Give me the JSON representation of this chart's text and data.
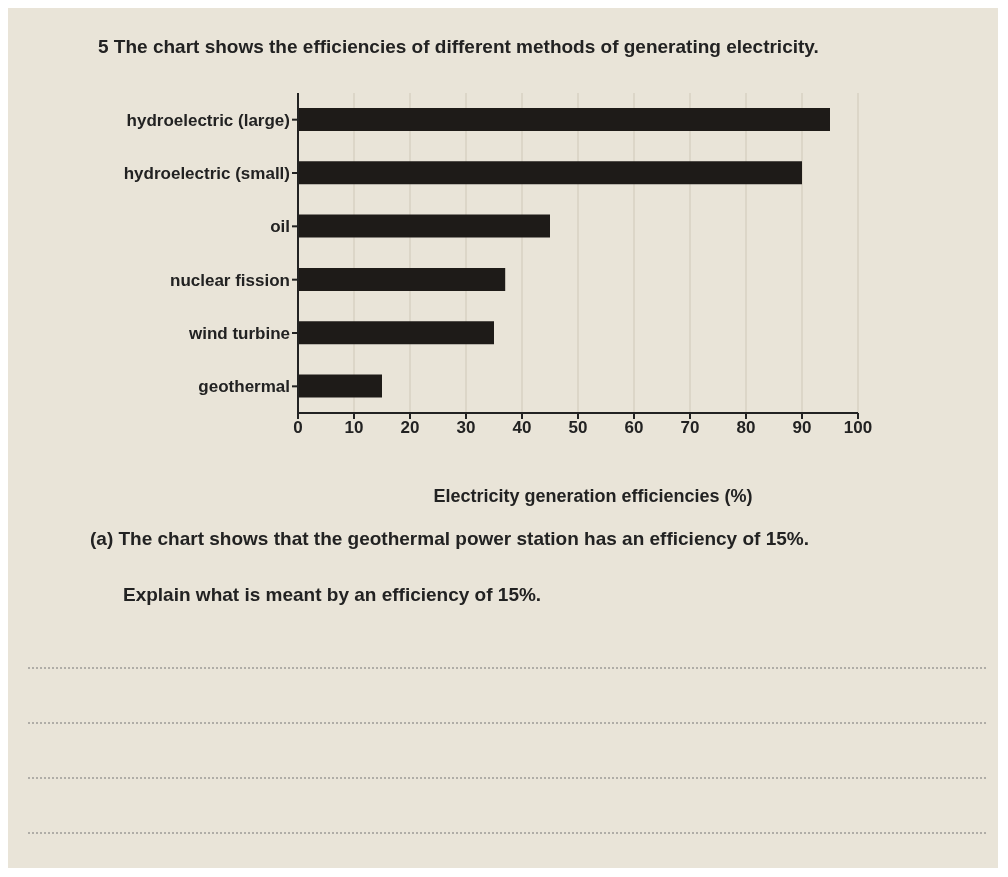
{
  "chart_data": {
    "type": "bar",
    "orientation": "horizontal",
    "title": "5  The chart shows the efficiencies of different methods of generating electricity.",
    "categories": [
      "hydroelectric (large)",
      "hydroelectric (small)",
      "oil",
      "nuclear fission",
      "wind turbine",
      "geothermal"
    ],
    "values": [
      95,
      90,
      45,
      37,
      35,
      15
    ],
    "color": "#1e1b18",
    "xlim": [
      0,
      100
    ],
    "xticks": [
      0,
      10,
      20,
      30,
      40,
      50,
      60,
      70,
      80,
      90,
      100
    ],
    "xlabel": "Electricity generation efficiencies (%)",
    "grid": "x",
    "annotations": [
      "(a) The chart shows that the geothermal power station has an efficiency of 15%.",
      "Explain what is meant by an efficiency of 15%."
    ]
  }
}
